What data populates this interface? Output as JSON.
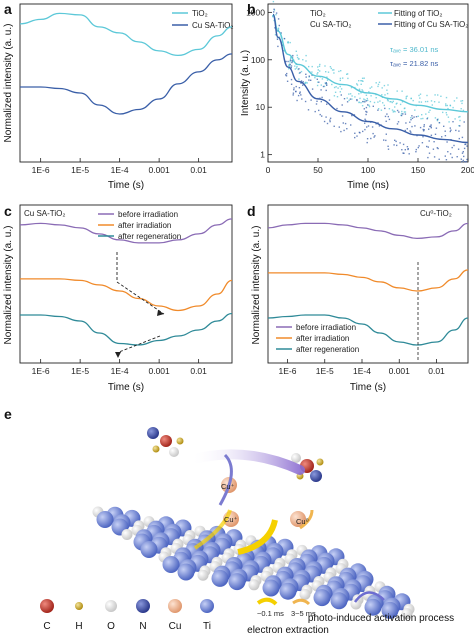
{
  "panels": {
    "a": {
      "letter": "a",
      "ylabel": "Normalized intensity (a. u.)",
      "xlabel": "Time (s)",
      "xticks": [
        "1E-6",
        "1E-5",
        "1E-4",
        "0.001",
        "0.01"
      ],
      "legend": [
        "TiO₂",
        "Cu SA-TiO₂"
      ]
    },
    "b": {
      "letter": "b",
      "ylabel": "Intensity (a. u.)",
      "xlabel": "Time (ns)",
      "xticks": [
        "0",
        "50",
        "100",
        "150",
        "200"
      ],
      "yticks": [
        "1",
        "10",
        "100",
        "1000"
      ],
      "legend": [
        "TiO₂",
        "Cu SA-TiO₂",
        "Fitting of TiO₂",
        "Fitting of Cu SA-TiO₂"
      ],
      "tau1": "τₐᵥₑ = 36.01 ns",
      "tau2": "τₐᵥₑ = 21.82 ns"
    },
    "c": {
      "letter": "c",
      "ylabel": "Normalized intensity (a. u.)",
      "xlabel": "Time (s)",
      "xticks": [
        "1E-6",
        "1E-5",
        "1E-4",
        "0.001",
        "0.01"
      ],
      "sample": "Cu SA-TiO₂",
      "legend": [
        "before irradiation",
        "after irradiation",
        "after regeneration"
      ]
    },
    "d": {
      "letter": "d",
      "ylabel": "Normalized intensity (a. u.)",
      "xlabel": "Time (s)",
      "xticks": [
        "1E-6",
        "1E-5",
        "1E-4",
        "0.001",
        "0.01"
      ],
      "sample": "Cu⁰-TiO₂",
      "legend": [
        "before irradiation",
        "after irradiation",
        "after regeneration"
      ]
    },
    "e": {
      "letter": "e",
      "atoms": [
        "C",
        "H",
        "O",
        "N",
        "Cu",
        "Ti"
      ],
      "electron_label": "electron extraction",
      "fast": "~0.1 ms",
      "slow": "3~5 ms",
      "process_label": "photo-induced activation process",
      "cu_labels": [
        "Cu⁺",
        "Cu⁺",
        "Cu⁰"
      ]
    }
  },
  "colors": {
    "tio2": "#5cc8d8",
    "cusa": "#3a5fa8",
    "before": "#8a6bb5",
    "after": "#f08a2a",
    "regen": "#2f8a98",
    "C": "#c0392b",
    "H": "#c9a227",
    "O": "#eeeeee",
    "N": "#3f4fa6",
    "Cu": "#f2b894",
    "Ti": "#6f86d6"
  },
  "chart_data": [
    {
      "type": "line",
      "panel": "a",
      "xscale": "log",
      "xlim": [
        3e-07,
        0.07
      ],
      "x": [
        3e-07,
        1e-06,
        3e-06,
        1e-05,
        3e-05,
        0.0001,
        0.0003,
        0.001,
        0.003,
        0.01,
        0.03,
        0.07
      ],
      "series": [
        {
          "name": "TiO₂",
          "values": [
            0.92,
            0.95,
            0.99,
            0.98,
            0.9,
            0.86,
            0.8,
            0.74,
            0.71,
            0.75,
            0.84,
            0.9
          ]
        },
        {
          "name": "Cu SA-TiO₂",
          "values": [
            0.5,
            0.5,
            0.49,
            0.46,
            0.38,
            0.32,
            0.35,
            0.42,
            0.52,
            0.6,
            0.68,
            0.72
          ]
        }
      ]
    },
    {
      "type": "scatter",
      "panel": "b",
      "yscale": "log",
      "xlim": [
        0,
        200
      ],
      "ylim": [
        0.7,
        1500
      ],
      "series": [
        {
          "name": "Fitting of TiO₂",
          "x": [
            5,
            10,
            20,
            30,
            50,
            75,
            100,
            125,
            150,
            175,
            200
          ],
          "values": [
            900,
            400,
            130,
            80,
            45,
            30,
            20,
            15,
            11,
            9,
            8
          ]
        },
        {
          "name": "Fitting of Cu SA-TiO₂",
          "x": [
            5,
            10,
            20,
            30,
            50,
            75,
            100,
            125,
            150,
            175,
            200
          ],
          "values": [
            900,
            300,
            70,
            35,
            15,
            8,
            5,
            3.5,
            2.6,
            2.1,
            1.8
          ]
        }
      ],
      "annotations": [
        "τₐᵥₑ = 36.01 ns",
        "τₐᵥₑ = 21.82 ns"
      ]
    },
    {
      "type": "line",
      "panel": "c",
      "xscale": "log",
      "xlim": [
        3e-07,
        0.07
      ],
      "x": [
        3e-07,
        1e-06,
        3e-06,
        1e-05,
        3e-05,
        0.0001,
        0.0003,
        0.001,
        0.003,
        0.01,
        0.03,
        0.07
      ],
      "series": [
        {
          "name": "before irradiation",
          "values": [
            0.92,
            0.93,
            0.92,
            0.9,
            0.86,
            0.82,
            0.8,
            0.8,
            0.82,
            0.86,
            0.92,
            0.96
          ]
        },
        {
          "name": "after irradiation",
          "values": [
            0.56,
            0.56,
            0.56,
            0.55,
            0.52,
            0.48,
            0.43,
            0.38,
            0.35,
            0.38,
            0.46,
            0.55
          ]
        },
        {
          "name": "after regeneration",
          "values": [
            0.32,
            0.32,
            0.31,
            0.28,
            0.2,
            0.13,
            0.12,
            0.15,
            0.18,
            0.22,
            0.28,
            0.33
          ]
        }
      ]
    },
    {
      "type": "line",
      "panel": "d",
      "xscale": "log",
      "xlim": [
        3e-07,
        0.07
      ],
      "x": [
        3e-07,
        1e-06,
        3e-06,
        1e-05,
        3e-05,
        0.0001,
        0.0003,
        0.001,
        0.003,
        0.01,
        0.03,
        0.07
      ],
      "series": [
        {
          "name": "before irradiation",
          "values": [
            0.9,
            0.92,
            0.93,
            0.93,
            0.92,
            0.9,
            0.88,
            0.85,
            0.83,
            0.84,
            0.88,
            0.93
          ]
        },
        {
          "name": "after irradiation",
          "values": [
            0.6,
            0.6,
            0.6,
            0.6,
            0.59,
            0.57,
            0.54,
            0.5,
            0.48,
            0.5,
            0.56,
            0.62
          ]
        },
        {
          "name": "after regeneration",
          "values": [
            0.3,
            0.31,
            0.32,
            0.32,
            0.3,
            0.26,
            0.2,
            0.14,
            0.12,
            0.14,
            0.22,
            0.3
          ]
        }
      ]
    }
  ]
}
